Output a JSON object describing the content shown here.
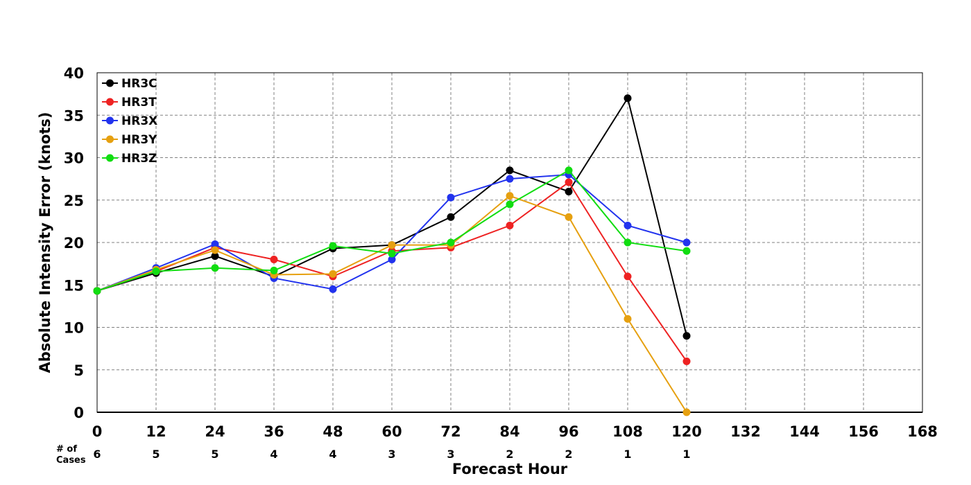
{
  "chart_data": {
    "type": "line",
    "xlabel": "Forecast Hour",
    "ylabel": "Absolute Intensity Error (knots)",
    "xlim": [
      0,
      168
    ],
    "ylim": [
      0,
      40
    ],
    "x_ticks": [
      0,
      12,
      24,
      36,
      48,
      60,
      72,
      84,
      96,
      108,
      120,
      132,
      144,
      156,
      168
    ],
    "y_ticks": [
      0,
      5,
      10,
      15,
      20,
      25,
      30,
      35,
      40
    ],
    "grid": true,
    "grid_style": "dashed",
    "legend_position": "top-left",
    "cases_label": "# of Cases",
    "cases": [
      {
        "x": 0,
        "n": "6"
      },
      {
        "x": 12,
        "n": "5"
      },
      {
        "x": 24,
        "n": "5"
      },
      {
        "x": 36,
        "n": "4"
      },
      {
        "x": 48,
        "n": "4"
      },
      {
        "x": 60,
        "n": "3"
      },
      {
        "x": 72,
        "n": "3"
      },
      {
        "x": 84,
        "n": "2"
      },
      {
        "x": 96,
        "n": "2"
      },
      {
        "x": 108,
        "n": "1"
      },
      {
        "x": 120,
        "n": "1"
      }
    ],
    "x": [
      0,
      12,
      24,
      36,
      48,
      60,
      72,
      84,
      96,
      108,
      120
    ],
    "series": [
      {
        "name": "HR3C",
        "color": "#000000",
        "values": [
          14.3,
          16.4,
          18.4,
          16.0,
          19.3,
          19.7,
          23.0,
          28.5,
          26.0,
          37.0,
          9.0
        ]
      },
      {
        "name": "HR3T",
        "color": "#ee2222",
        "values": [
          14.3,
          16.6,
          19.4,
          18.0,
          16.0,
          19.0,
          19.4,
          22.0,
          27.1,
          16.0,
          6.0
        ]
      },
      {
        "name": "HR3X",
        "color": "#2233ee",
        "values": [
          14.3,
          17.0,
          19.8,
          15.8,
          14.5,
          18.0,
          25.3,
          27.5,
          28.0,
          22.0,
          20.0
        ]
      },
      {
        "name": "HR3Y",
        "color": "#e6a010",
        "values": [
          14.3,
          16.8,
          19.1,
          16.2,
          16.3,
          19.7,
          19.7,
          25.5,
          23.0,
          11.0,
          0.0
        ]
      },
      {
        "name": "HR3Z",
        "color": "#11dd11",
        "values": [
          14.3,
          16.6,
          17.0,
          16.7,
          19.6,
          18.7,
          20.0,
          24.5,
          28.5,
          20.0,
          19.0
        ]
      }
    ]
  }
}
